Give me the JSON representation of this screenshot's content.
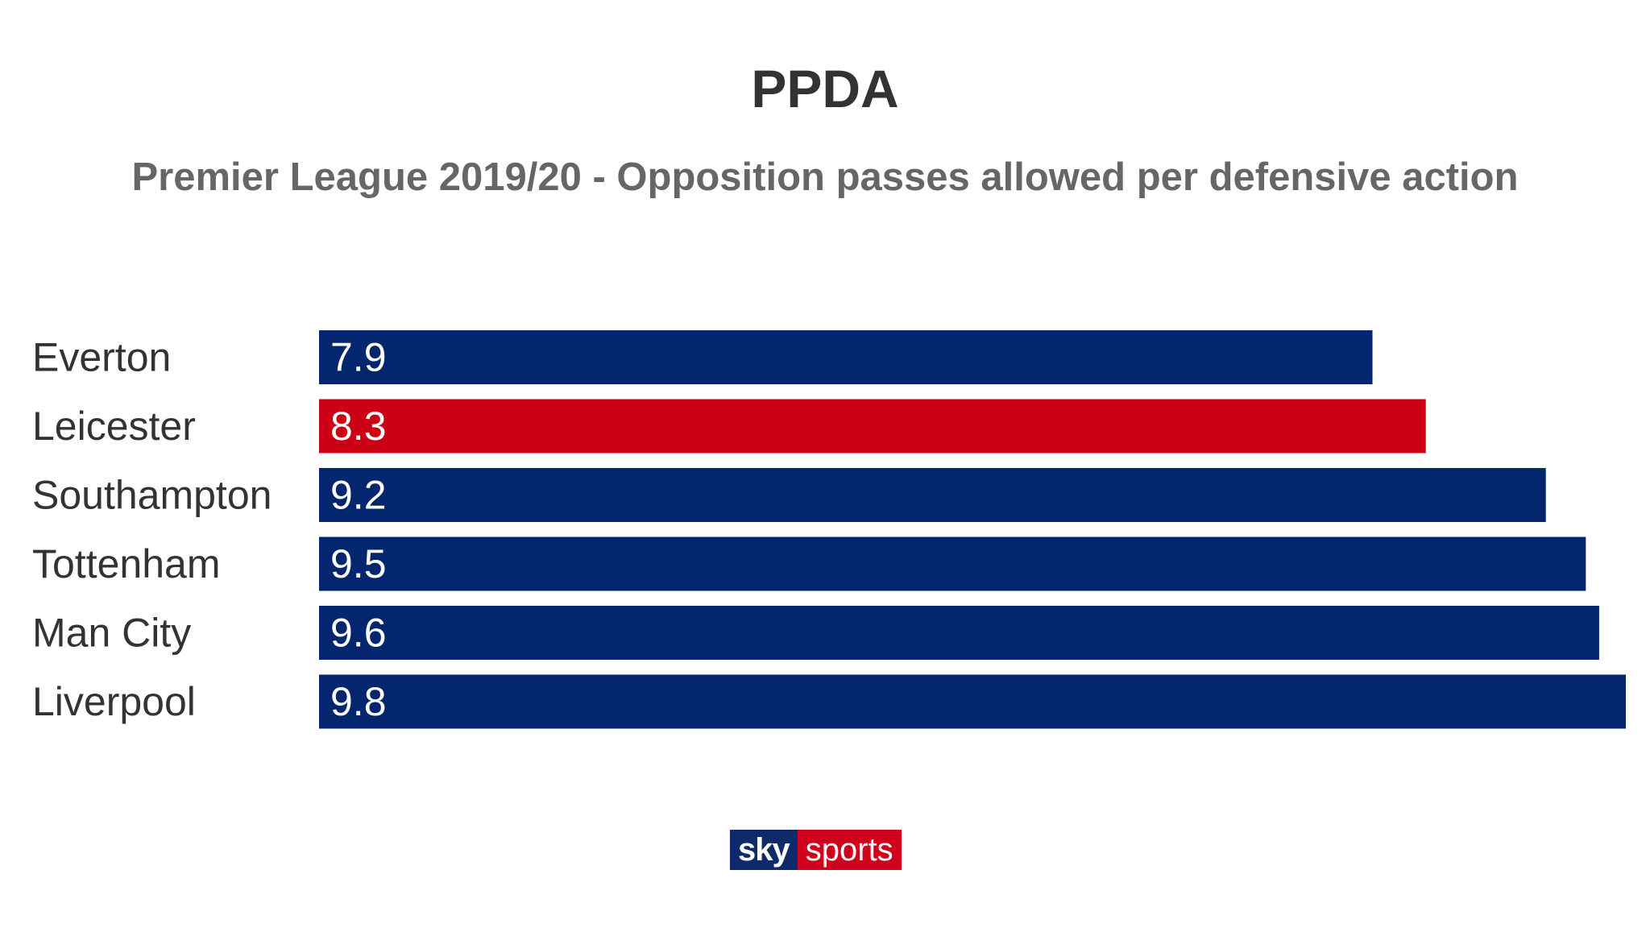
{
  "chart_data": {
    "type": "bar",
    "orientation": "horizontal",
    "title": "PPDA",
    "subtitle": "Premier League 2019/20 - Opposition passes allowed per defensive action",
    "categories": [
      "Everton",
      "Leicester",
      "Southampton",
      "Tottenham",
      "Man City",
      "Liverpool"
    ],
    "values": [
      7.9,
      8.3,
      9.2,
      9.5,
      9.6,
      9.8
    ],
    "bar_colors": [
      "#03266e",
      "#cc0014",
      "#03266e",
      "#03266e",
      "#03266e",
      "#03266e"
    ],
    "xlim": [
      0,
      9.8
    ],
    "grid": false,
    "legend": "none"
  },
  "logo": {
    "sky": "sky",
    "sports": "sports"
  },
  "colors": {
    "primary": "#03266e",
    "highlight": "#cc0014",
    "title": "#333333",
    "subtitle": "#666666"
  }
}
